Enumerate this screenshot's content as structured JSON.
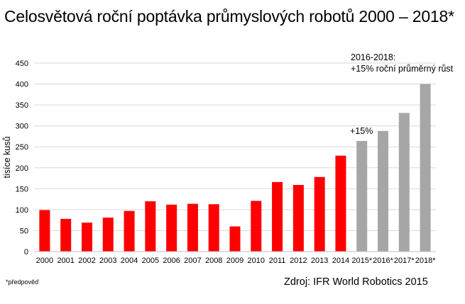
{
  "title": "Celosvětová roční poptávka průmyslových robotů 2000 – 2018*",
  "footnote": "*předpověď",
  "source": "Zdroj: IFR World Robotics 2015",
  "colors": {
    "actual": "#ff0000",
    "forecast": "#a6a6a6",
    "grid": "#d9d9d9",
    "axis": "#bfbfbf"
  },
  "chart_data": {
    "type": "bar",
    "title": "Celosvětová roční poptávka průmyslových robotů 2000 – 2018*",
    "xlabel": "",
    "ylabel": "tisíce kusů",
    "ylim": [
      0,
      450
    ],
    "yticks": [
      0,
      50,
      100,
      150,
      200,
      250,
      300,
      350,
      400,
      450
    ],
    "grid": true,
    "legend": "none",
    "categories": [
      "2000",
      "2001",
      "2002",
      "2003",
      "2004",
      "2005",
      "2006",
      "2007",
      "2008",
      "2009",
      "2010",
      "2011",
      "2012",
      "2013",
      "2014",
      "2015*",
      "2016*",
      "2017*",
      "2018*"
    ],
    "values": [
      99,
      78,
      69,
      81,
      97,
      120,
      112,
      114,
      113,
      60,
      121,
      166,
      159,
      178,
      229,
      264,
      288,
      331,
      400
    ],
    "bar_types": [
      "actual",
      "actual",
      "actual",
      "actual",
      "actual",
      "actual",
      "actual",
      "actual",
      "actual",
      "actual",
      "actual",
      "actual",
      "actual",
      "actual",
      "actual",
      "forecast",
      "forecast",
      "forecast",
      "forecast"
    ],
    "annotations": [
      {
        "text": "+15%",
        "category": "2015*"
      },
      {
        "lines": [
          "2016-2018:",
          "+15% roční průměrný růst"
        ],
        "category": "2018*"
      }
    ]
  }
}
